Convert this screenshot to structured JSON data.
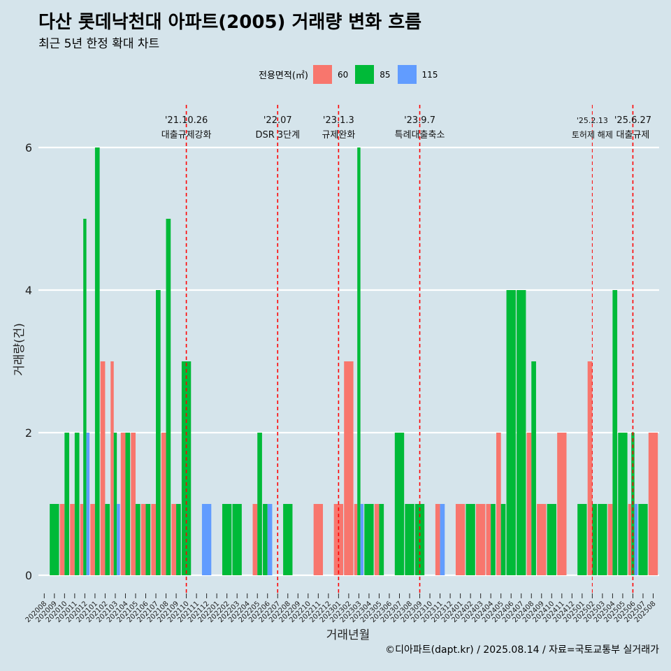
{
  "chart_data": {
    "type": "bar",
    "title": "다산 롯데낙천대 아파트(2005) 거래량 변화 흐름",
    "subtitle": "최근 5년 한정 확대 차트",
    "xlabel": "거래년월",
    "ylabel": "거래량(건)",
    "ylim": [
      0,
      6
    ],
    "yticks": [
      0,
      2,
      4,
      6
    ],
    "grid": true,
    "legend": {
      "title": "전용면적(㎡)",
      "position": "top"
    },
    "categories": [
      "202008",
      "202009",
      "202010",
      "202011",
      "202012",
      "202101",
      "202102",
      "202103",
      "202104",
      "202105",
      "202106",
      "202107",
      "202108",
      "202109",
      "202110",
      "202111",
      "202112",
      "202201",
      "202202",
      "202203",
      "202204",
      "202205",
      "202206",
      "202207",
      "202208",
      "202209",
      "202210",
      "202211",
      "202212",
      "202301",
      "202302",
      "202303",
      "202304",
      "202305",
      "202306",
      "202307",
      "202308",
      "202309",
      "202310",
      "202311",
      "202312",
      "202401",
      "202402",
      "202403",
      "202404",
      "202405",
      "202406",
      "202407",
      "202408",
      "202409",
      "202410",
      "202411",
      "202412",
      "202501",
      "202502",
      "202503",
      "202504",
      "202505",
      "202506",
      "202507",
      "202508"
    ],
    "series": [
      {
        "name": "60",
        "color": "#F8766D",
        "values": [
          null,
          null,
          1,
          1,
          1,
          1,
          3,
          3,
          2,
          2,
          1,
          1,
          2,
          1,
          null,
          null,
          null,
          null,
          null,
          null,
          null,
          1,
          null,
          null,
          null,
          null,
          null,
          1,
          null,
          1,
          3,
          1,
          null,
          1,
          null,
          null,
          null,
          null,
          null,
          1,
          null,
          1,
          null,
          1,
          1,
          2,
          null,
          null,
          2,
          1,
          null,
          2,
          null,
          null,
          3,
          null,
          1,
          null,
          1,
          null,
          2
        ]
      },
      {
        "name": "85",
        "color": "#00BA38",
        "values": [
          null,
          1,
          2,
          2,
          5,
          6,
          1,
          2,
          2,
          1,
          1,
          4,
          5,
          1,
          3,
          null,
          null,
          null,
          1,
          1,
          null,
          2,
          1,
          null,
          1,
          null,
          null,
          null,
          null,
          null,
          null,
          6,
          1,
          1,
          null,
          2,
          1,
          1,
          null,
          null,
          null,
          null,
          1,
          null,
          1,
          1,
          4,
          4,
          3,
          null,
          1,
          null,
          null,
          1,
          1,
          1,
          4,
          2,
          2,
          1,
          null
        ]
      },
      {
        "name": "115",
        "color": "#619CFF",
        "values": [
          null,
          null,
          null,
          null,
          2,
          null,
          null,
          1,
          null,
          null,
          null,
          null,
          null,
          null,
          null,
          null,
          1,
          null,
          null,
          null,
          null,
          null,
          1,
          null,
          null,
          null,
          null,
          null,
          null,
          null,
          null,
          1,
          null,
          null,
          null,
          null,
          null,
          null,
          null,
          1,
          null,
          null,
          null,
          null,
          null,
          null,
          null,
          null,
          null,
          null,
          null,
          null,
          null,
          null,
          null,
          null,
          null,
          null,
          1,
          null,
          null
        ]
      }
    ],
    "events": [
      {
        "month": "202110",
        "date": "'21.10.26",
        "label": "대출규제강화"
      },
      {
        "month": "202207",
        "date": "'22.07",
        "label": "DSR 3단계"
      },
      {
        "month": "202301",
        "date": "'23.1.3",
        "label": "규제완화"
      },
      {
        "month": "202309",
        "date": "'23.9.7",
        "label": "특례대출축소"
      },
      {
        "month": "202502",
        "date": "'25.2.13",
        "label": "토허제 해제"
      },
      {
        "month": "202506",
        "date": "'25.6.27",
        "label": "대출규제"
      }
    ]
  },
  "caption": "©디아파트(dapt.kr) / 2025.08.14 / 자료=국토교통부 실거래가",
  "colors": {
    "background": "#D5E4EB",
    "grid": "#FFFFFF",
    "event_line": "#FF0000"
  }
}
